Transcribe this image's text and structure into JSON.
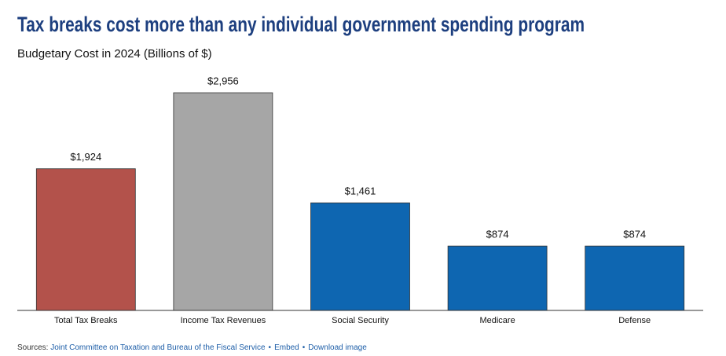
{
  "chart_data": {
    "type": "bar",
    "title": "Tax breaks cost more than any individual government spending program",
    "subtitle": "Budgetary Cost in 2024 (Billions of $)",
    "categories": [
      "Total Tax Breaks",
      "Income Tax Revenues",
      "Social Security",
      "Medicare",
      "Defense"
    ],
    "values": [
      1924,
      2956,
      1461,
      874,
      874
    ],
    "value_labels": [
      "$1,924",
      "$2,956",
      "$1,461",
      "$874",
      "$874"
    ],
    "colors": [
      "#b3524b",
      "#a6a6a6",
      "#0e66b1",
      "#0e66b1",
      "#0e66b1"
    ],
    "ylim": [
      0,
      3000
    ]
  },
  "footer": {
    "sources_label": "Sources:",
    "sources": "Joint Committee on Taxation and Bureau of the Fiscal Service",
    "separator": "•",
    "embed": "Embed",
    "download": "Download image"
  }
}
